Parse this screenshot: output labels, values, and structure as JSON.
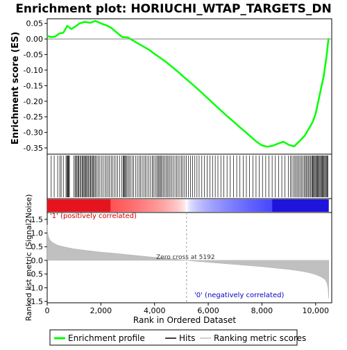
{
  "chart_data": [
    {
      "type": "line",
      "title": "Enrichment plot: HORIUCHI_WTAP_TARGETS_DN",
      "ylabel": "Enrichment score (ES)",
      "ylim": [
        -0.37,
        0.065
      ],
      "xlim": [
        0,
        10600
      ],
      "yticks": [
        0.05,
        0.0,
        -0.05,
        -0.1,
        -0.15,
        -0.2,
        -0.25,
        -0.3,
        -0.35
      ],
      "ytick_labels": [
        "0.05",
        "0.00",
        "-0.05",
        "-0.10",
        "-0.15",
        "-0.20",
        "-0.25",
        "-0.30",
        "-0.35"
      ],
      "grid": false,
      "series": [
        {
          "name": "Enrichment profile",
          "color": "#00ff00",
          "x": [
            0,
            150,
            300,
            450,
            600,
            750,
            900,
            1050,
            1200,
            1400,
            1600,
            1800,
            2000,
            2200,
            2400,
            2600,
            2800,
            3000,
            3200,
            3400,
            3600,
            3800,
            4000,
            4200,
            4400,
            4600,
            4800,
            5000,
            5200,
            5400,
            5600,
            5800,
            6000,
            6200,
            6400,
            6600,
            6800,
            7000,
            7200,
            7400,
            7600,
            7800,
            8000,
            8200,
            8400,
            8600,
            8800,
            9000,
            9200,
            9400,
            9600,
            9700,
            9800,
            9900,
            10000,
            10100,
            10200,
            10300,
            10400,
            10480
          ],
          "y": [
            0.01,
            0.006,
            0.008,
            0.018,
            0.02,
            0.042,
            0.032,
            0.04,
            0.05,
            0.055,
            0.052,
            0.058,
            0.05,
            0.044,
            0.035,
            0.02,
            0.006,
            0.005,
            -0.005,
            -0.015,
            -0.025,
            -0.035,
            -0.048,
            -0.06,
            -0.072,
            -0.086,
            -0.1,
            -0.115,
            -0.13,
            -0.145,
            -0.16,
            -0.176,
            -0.192,
            -0.208,
            -0.224,
            -0.24,
            -0.255,
            -0.27,
            -0.285,
            -0.3,
            -0.315,
            -0.33,
            -0.342,
            -0.346,
            -0.343,
            -0.336,
            -0.33,
            -0.34,
            -0.345,
            -0.328,
            -0.31,
            -0.295,
            -0.28,
            -0.265,
            -0.24,
            -0.2,
            -0.16,
            -0.12,
            -0.06,
            0.002
          ]
        }
      ]
    },
    {
      "type": "barcode",
      "legend_name": "Hits",
      "color": "#000000",
      "hits": [
        150,
        260,
        390,
        470,
        520,
        600,
        700,
        730,
        760,
        780,
        800,
        830,
        1000,
        1040,
        1080,
        1110,
        1150,
        1180,
        1220,
        1260,
        1300,
        1330,
        1370,
        1400,
        1430,
        1470,
        1500,
        1540,
        1580,
        1620,
        1650,
        1690,
        1720,
        1760,
        1800,
        1850,
        1900,
        1960,
        2020,
        2080,
        2150,
        2200,
        2260,
        2310,
        2380,
        2430,
        2500,
        2560,
        2620,
        2700,
        2780,
        2830,
        2860,
        2890,
        2920,
        2950,
        3000,
        3050,
        3100,
        3160,
        3220,
        3290,
        3360,
        3420,
        3480,
        3540,
        3600,
        3660,
        3720,
        3780,
        3850,
        3920,
        3960,
        4020,
        4080,
        4120,
        4160,
        4200,
        4240,
        4280,
        4330,
        4380,
        4430,
        4480,
        4530,
        4580,
        4640,
        4700,
        4760,
        4820,
        4880,
        4940,
        5000,
        5060,
        5120,
        5180,
        5260,
        5340,
        5420,
        5500,
        5580,
        5660,
        5760,
        5860,
        5960,
        6060,
        6160,
        6260,
        6360,
        6470,
        6580,
        6700,
        6820,
        6940,
        7060,
        7180,
        7300,
        7420,
        7540,
        7660,
        7780,
        7900,
        8020,
        8140,
        8260,
        8380,
        8500,
        8620,
        8740,
        8860,
        8980,
        9060,
        9120,
        9180,
        9230,
        9280,
        9330,
        9380,
        9430,
        9480,
        9530,
        9580,
        9620,
        9660,
        9700,
        9740,
        9780,
        9820,
        9860,
        9890,
        9920,
        9950,
        9980,
        10010,
        10040,
        10070,
        10100,
        10130,
        10160,
        10190,
        10220,
        10250,
        10280,
        10310,
        10340,
        10370,
        10400,
        10430,
        10460
      ]
    },
    {
      "type": "heatbar",
      "label_positive": "'1' (positively correlated)",
      "label_negative": "'0' (negatively correlated)",
      "color_positive": "#ff0000",
      "color_negative": "#0000ff"
    },
    {
      "type": "area",
      "ylabel": "Ranked list metric (Signal2Noise)",
      "xlabel": "Rank in Ordered Dataset",
      "legend_name": "Ranking metric scores",
      "color": "#c0c0c0",
      "ylim": [
        -1.55,
        1.75
      ],
      "xlim": [
        0,
        10600
      ],
      "yticks": [
        1.5,
        1.0,
        0.5,
        0.0,
        -0.5,
        -1.0,
        -1.5
      ],
      "ytick_labels": [
        "1.5",
        "1.0",
        "0.5",
        "0.0",
        "-0.5",
        "-1.0",
        "-1.5"
      ],
      "xticks": [
        0,
        2000,
        4000,
        6000,
        8000,
        10000
      ],
      "xtick_labels": [
        "0",
        "2,000",
        "4,000",
        "6,000",
        "8,000",
        "10,000"
      ],
      "zero_cross_label": "Zero cross at 5192",
      "zero_cross": 5192,
      "x": [
        0,
        20,
        50,
        100,
        200,
        400,
        700,
        1000,
        1500,
        2000,
        2500,
        3000,
        3500,
        4000,
        4500,
        5000,
        5192,
        5500,
        6000,
        6500,
        7000,
        7500,
        8000,
        8500,
        9000,
        9500,
        9800,
        10000,
        10200,
        10350,
        10420,
        10460,
        10490
      ],
      "y": [
        1.3,
        1.0,
        0.85,
        0.75,
        0.65,
        0.55,
        0.48,
        0.42,
        0.36,
        0.3,
        0.26,
        0.21,
        0.16,
        0.11,
        0.07,
        0.02,
        0.0,
        -0.03,
        -0.07,
        -0.11,
        -0.15,
        -0.19,
        -0.23,
        -0.28,
        -0.33,
        -0.4,
        -0.46,
        -0.52,
        -0.6,
        -0.7,
        -0.82,
        -1.0,
        -1.4
      ]
    }
  ],
  "legend": {
    "items": [
      {
        "label": "Enrichment profile",
        "color": "#00ff00"
      },
      {
        "label": "Hits",
        "color": "#000000"
      },
      {
        "label": "Ranking metric scores",
        "color": "#c0c0c0"
      }
    ]
  }
}
